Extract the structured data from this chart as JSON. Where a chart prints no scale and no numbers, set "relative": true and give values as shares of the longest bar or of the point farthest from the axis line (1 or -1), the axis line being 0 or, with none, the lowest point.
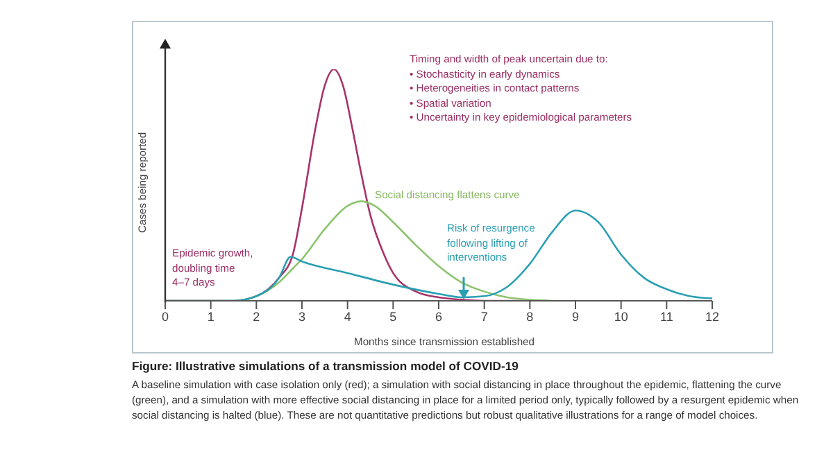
{
  "chart_data": {
    "type": "line",
    "title": "Figure: Illustrative simulations of a transmission model of COVID-19",
    "xlabel": "Months since transmission established",
    "ylabel": "Cases being reported",
    "relative": true,
    "xlim": [
      0,
      12
    ],
    "xticks": [
      0,
      1,
      2,
      3,
      4,
      5,
      6,
      7,
      8,
      9,
      10,
      11,
      12
    ],
    "grid": false,
    "legend": false,
    "marker": "none",
    "line_style": "solid",
    "series": [
      {
        "color": "#a8336a",
        "x": [
          0,
          1.5,
          2,
          2.5,
          2.8,
          3,
          3.3,
          3.5,
          3.7,
          3.9,
          4.1,
          4.3,
          4.5,
          4.8,
          5,
          5.5,
          6,
          6.5,
          7,
          8.4
        ],
        "values": [
          0,
          0,
          0.02,
          0.1,
          0.2,
          0.4,
          0.75,
          0.93,
          1,
          0.93,
          0.75,
          0.55,
          0.37,
          0.2,
          0.12,
          0.04,
          0.015,
          0.005,
          0,
          0
        ]
      },
      {
        "color": "#8cc46e",
        "x": [
          0,
          1.5,
          2,
          2.5,
          2.8,
          3,
          3.5,
          4,
          4.3,
          4.6,
          5,
          5.5,
          6,
          6.5,
          7,
          7.5,
          8,
          8.5
        ],
        "values": [
          0,
          0,
          0.02,
          0.08,
          0.14,
          0.18,
          0.31,
          0.41,
          0.43,
          0.41,
          0.34,
          0.24,
          0.15,
          0.08,
          0.04,
          0.015,
          0.005,
          0
        ]
      },
      {
        "color": "#2a9fb2",
        "x": [
          0,
          1.5,
          2,
          2.5,
          2.75,
          3,
          4,
          5,
          6,
          6.5,
          7,
          7.5,
          8,
          8.5,
          9,
          9.5,
          10,
          10.5,
          11,
          11.5,
          12
        ],
        "values": [
          0,
          0,
          0.02,
          0.1,
          0.19,
          0.17,
          0.12,
          0.07,
          0.03,
          0.015,
          0.02,
          0.06,
          0.16,
          0.3,
          0.39,
          0.34,
          0.2,
          0.1,
          0.05,
          0.02,
          0.01
        ]
      }
    ],
    "annotations": [
      "Timing and width of peak uncertain due to:\n• Stochasticity in early dynamics\n• Heterogeneities in contact patterns\n• Spatial variation\n• Uncertainty in key epidemiological parameters",
      "Social distancing flattens curve",
      "Risk of resurgence\nfollowing lifting of\ninterventions",
      "Epidemic growth,\ndoubling time\n4–7 days",
      "A baseline simulation with case isolation only (red); a simulation with social distancing in place throughout the epidemic, flattening the curve (green), and a simulation with more effective social distancing in place for a limited period only, typically followed by a resurgent epidemic when social distancing is halted (blue). These are not quantitative predictions but robust qualitative illustrations for a range of model choices."
    ]
  }
}
